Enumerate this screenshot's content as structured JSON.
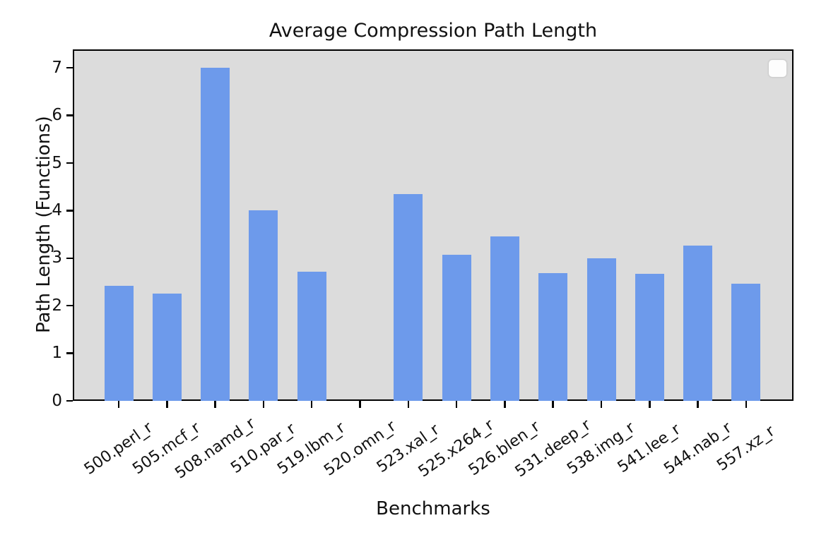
{
  "chart_data": {
    "type": "bar",
    "title": "Average Compression Path Length",
    "xlabel": "Benchmarks",
    "ylabel": "Path Length (Functions)",
    "categories": [
      "500.perl_r",
      "505.mcf_r",
      "508.namd_r",
      "510.par_r",
      "519.lbm_r",
      "520.omn_r",
      "523.xal_r",
      "525.x264_r",
      "526.blen_r",
      "531.deep_r",
      "538.img_r",
      "541.lee_r",
      "544.nab_r",
      "557.xz_r"
    ],
    "values": [
      2.42,
      2.26,
      7.0,
      4.0,
      2.72,
      0,
      4.34,
      3.07,
      3.46,
      2.69,
      3.0,
      2.67,
      3.26,
      2.47
    ],
    "yticks": [
      0,
      1,
      2,
      3,
      4,
      5,
      6,
      7
    ],
    "ylim": [
      0,
      7.39
    ],
    "xtick_rotation_deg": 35,
    "grid": "off",
    "legend": {
      "visible": true,
      "entries": [],
      "position": "upper right"
    },
    "colors": {
      "bar": "#6d9aeb",
      "plot_background": "#dcdcdc",
      "figure_background": "#ffffff",
      "text": "#111111",
      "spine": "#000000"
    }
  }
}
